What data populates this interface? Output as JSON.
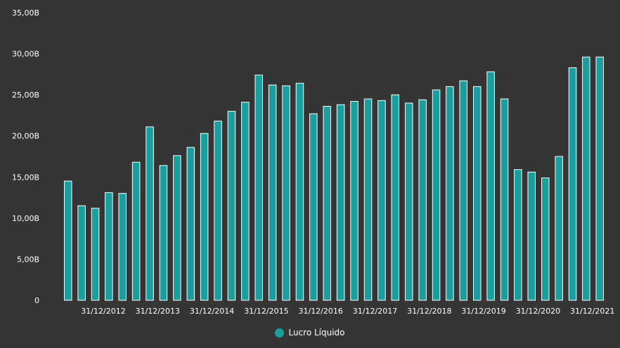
{
  "colors": {
    "bar_fill": "#1a9e9e",
    "bar_stroke": "#ffffff",
    "background": "#353535",
    "text": "#ffffff"
  },
  "legend": {
    "label": "Lucro Líquido",
    "icon": "circle-marker-icon"
  },
  "chart_data": {
    "type": "bar",
    "ylim": [
      0,
      35
    ],
    "yticks": [
      "0",
      "5,00B",
      "10,00B",
      "15,00B",
      "20,00B",
      "25,00B",
      "30,00B",
      "35,00B"
    ],
    "xtick_labels": [
      "31/12/2012",
      "31/12/2013",
      "31/12/2014",
      "31/12/2015",
      "31/12/2016",
      "31/12/2017",
      "31/12/2018",
      "31/12/2019",
      "31/12/2020",
      "31/12/2021"
    ],
    "series": [
      {
        "name": "Lucro Líquido",
        "values": [
          14.5,
          11.5,
          11.2,
          13.1,
          13.0,
          16.8,
          21.1,
          16.4,
          17.6,
          18.6,
          20.3,
          21.8,
          23.0,
          24.1,
          27.4,
          26.2,
          26.1,
          26.4,
          22.7,
          23.6,
          23.8,
          24.2,
          24.5,
          24.3,
          25.0,
          24.0,
          24.4,
          25.6,
          26.0,
          26.7,
          26.0,
          27.8,
          24.5,
          15.9,
          15.6,
          14.9,
          17.5,
          28.3,
          29.6,
          29.6
        ]
      }
    ]
  }
}
